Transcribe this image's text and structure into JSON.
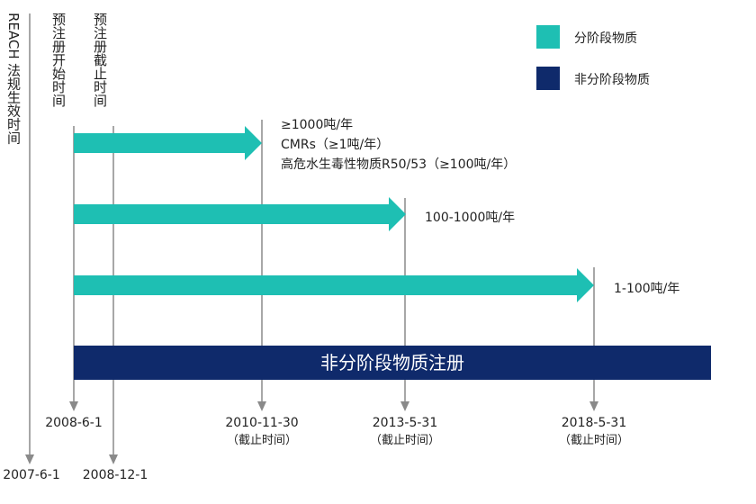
{
  "colors": {
    "phase_in": "#1ebfb3",
    "non_phase_in": "#0f2a6b",
    "line": "#8a8a8a"
  },
  "legend": [
    {
      "label": "分阶段物质",
      "color": "#1ebfb3"
    },
    {
      "label": "非分阶段物质",
      "color": "#0f2a6b"
    }
  ],
  "vertical_labels": {
    "reach": "REACH 法规生效时间",
    "pre_start": "预注册开始时间",
    "pre_end": "预注册截止时间"
  },
  "phase_arrows": [
    {
      "lines": [
        "≥1000吨/年",
        "CMRs（≥1吨/年）",
        "高危水生毒性物质R50/53（≥100吨/年）"
      ]
    },
    {
      "lines": [
        "100-1000吨/年"
      ]
    },
    {
      "lines": [
        "1-100吨/年"
      ]
    }
  ],
  "banner": {
    "label": "非分阶段物质注册"
  },
  "dates": {
    "d2008_6_1": "2008-6-1",
    "d2010": "2010-11-30",
    "d2013": "2013-5-31",
    "d2018": "2018-5-31",
    "deadline_sub": "（截止时间）",
    "d2007": "2007-6-1",
    "d2008_12_1": "2008-12-1"
  }
}
